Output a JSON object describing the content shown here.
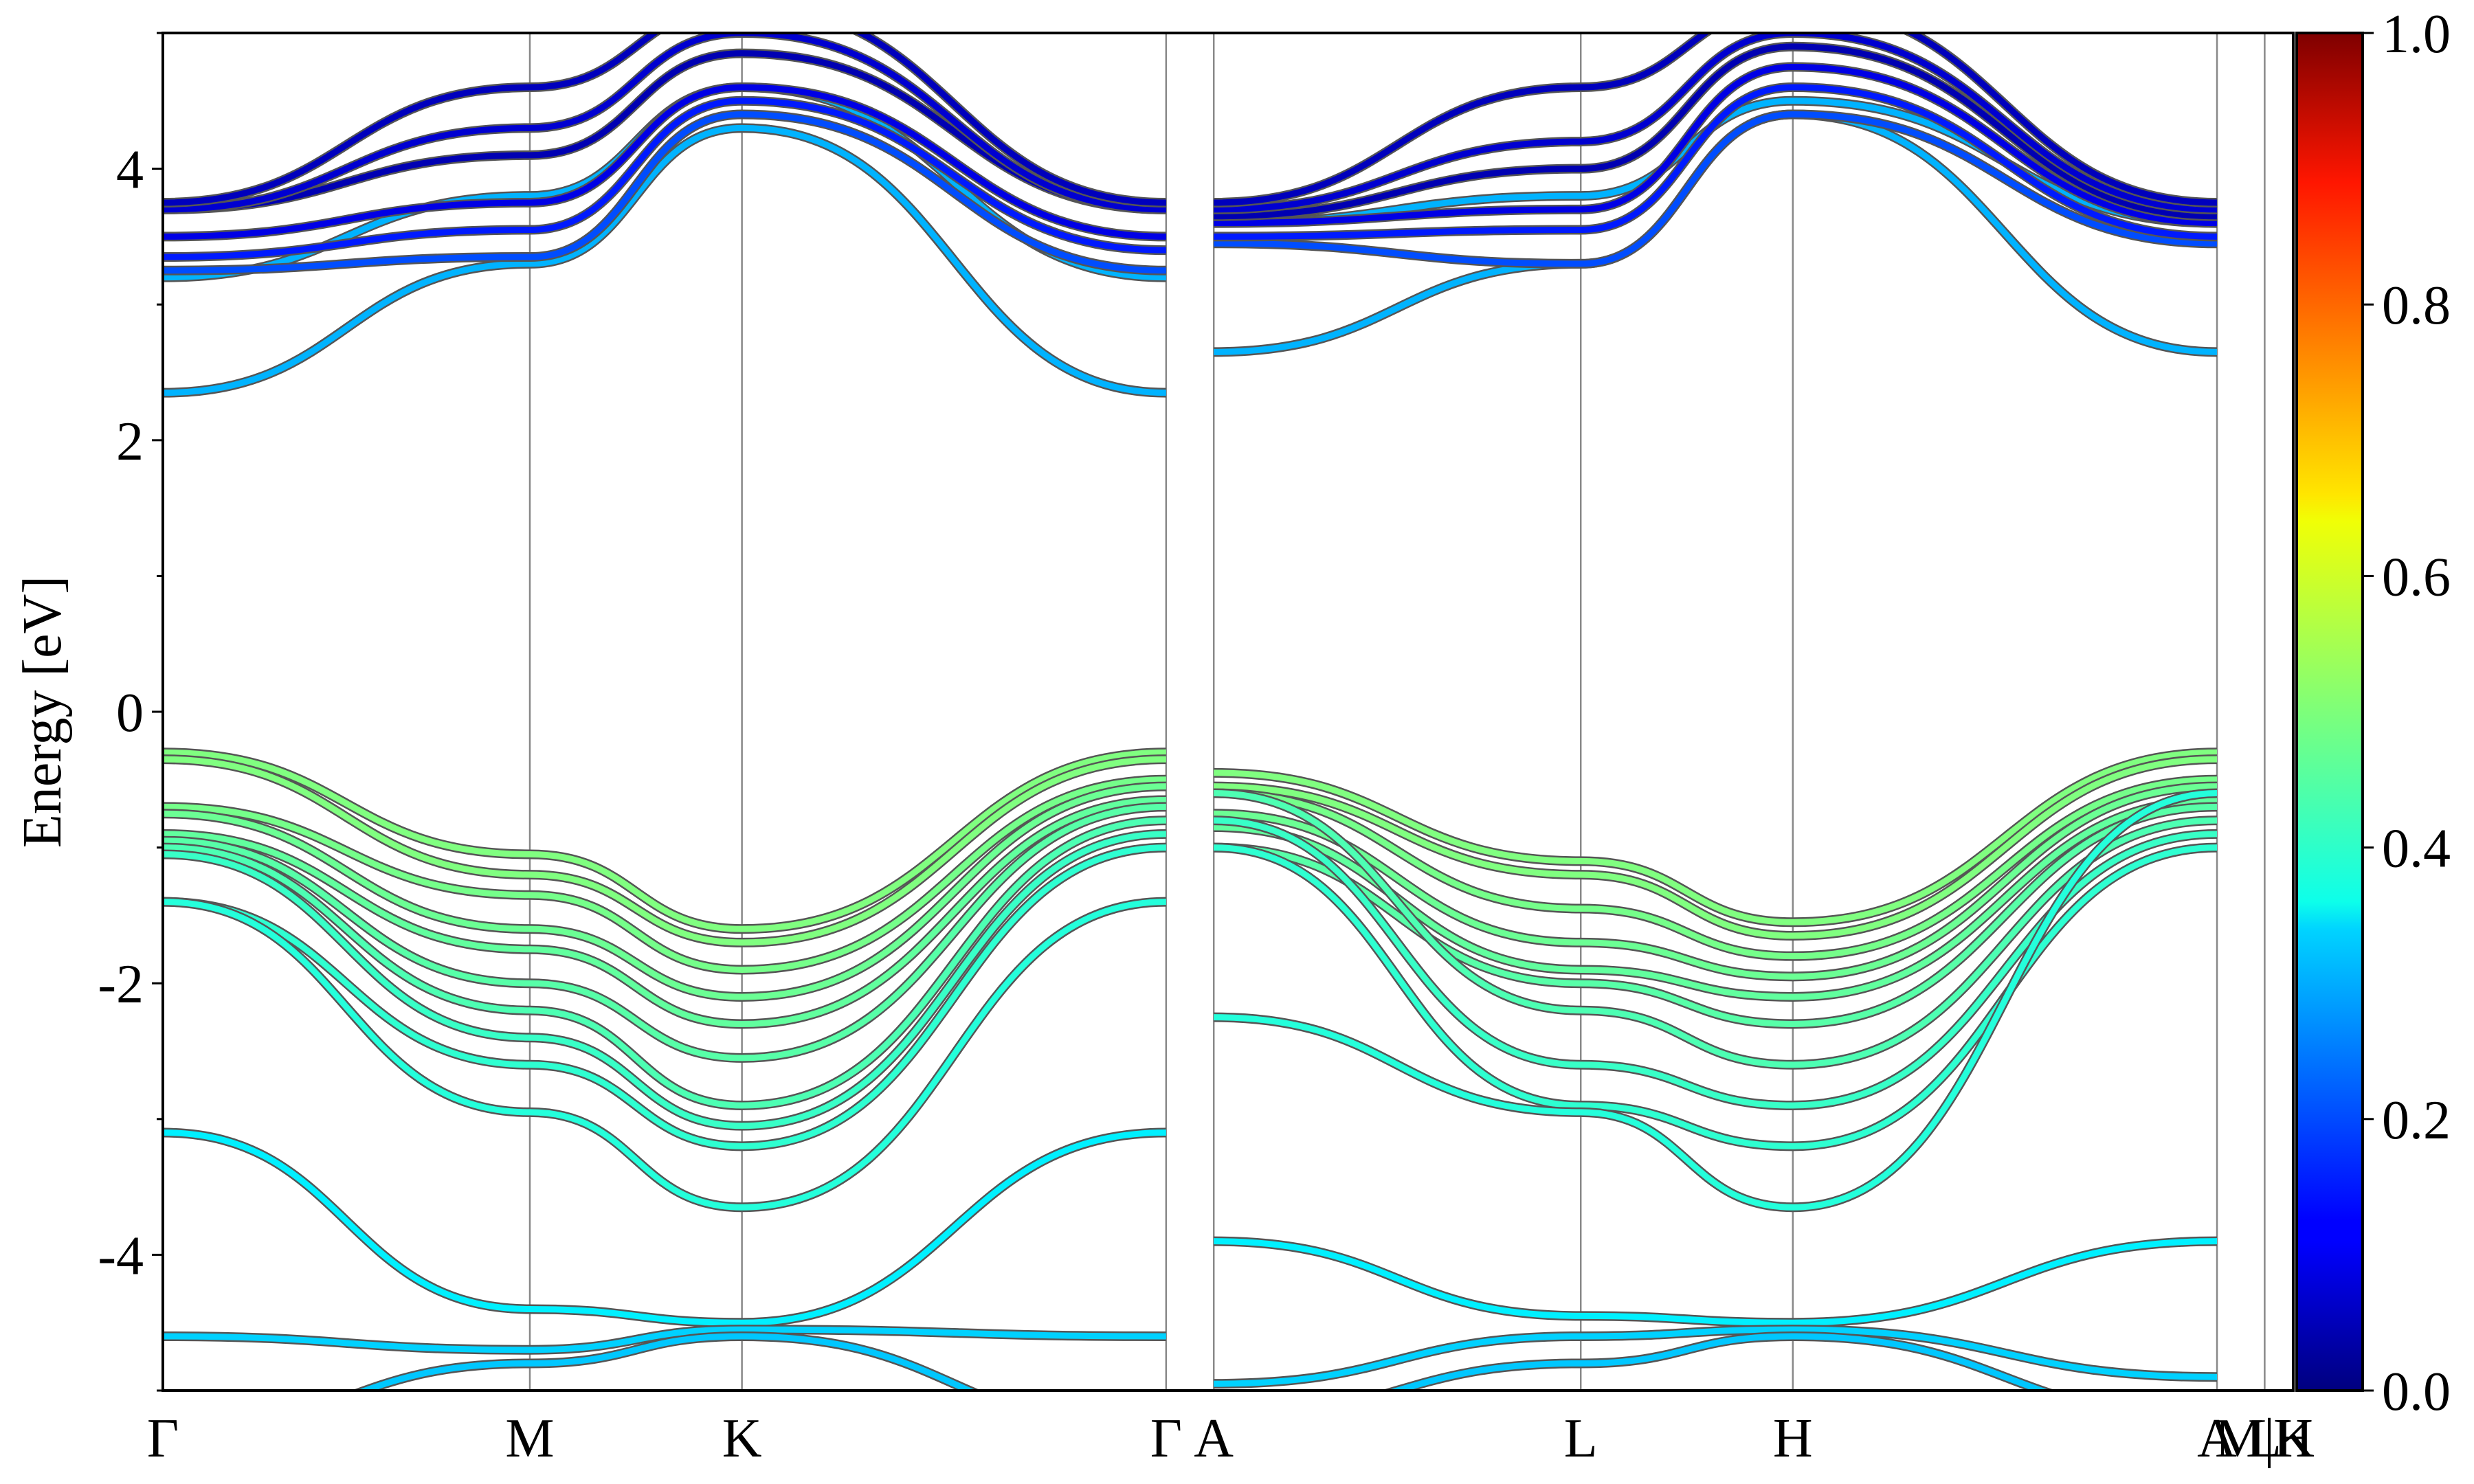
{
  "chart_data": {
    "type": "line",
    "title": "",
    "ylabel": "Energy [eV]",
    "xlabel": "",
    "ylim": [
      -5,
      5
    ],
    "yticks": [
      {
        "value": 4,
        "label": "4"
      },
      {
        "value": 2,
        "label": "2"
      },
      {
        "value": 0,
        "label": "0"
      },
      {
        "value": -2,
        "label": "-2"
      },
      {
        "value": -4,
        "label": "-4"
      }
    ],
    "x_range": [
      0,
      4.47
    ],
    "kpoints": [
      {
        "label": "Γ",
        "x": 0.0
      },
      {
        "label": "M",
        "x": 0.77
      },
      {
        "label": "K",
        "x": 1.215
      },
      {
        "label": "Γ",
        "x": 2.105
      },
      {
        "label": "A",
        "x": 2.205
      },
      {
        "label": "L",
        "x": 2.975
      },
      {
        "label": "H",
        "x": 3.42
      },
      {
        "label": "A",
        "x": 4.31
      },
      {
        "label": "L",
        "x": 4.41
      },
      {
        "label": "M|K",
        "x": 4.41
      },
      {
        "label": "H",
        "x": 4.47
      }
    ],
    "colorbar": {
      "colormap": "jet",
      "range": [
        0.0,
        1.0
      ],
      "ticks": [
        {
          "value": 0.0,
          "label": "0.0"
        },
        {
          "value": 0.2,
          "label": "0.2"
        },
        {
          "value": 0.4,
          "label": "0.4"
        },
        {
          "value": 0.6,
          "label": "0.6"
        },
        {
          "value": 0.8,
          "label": "0.8"
        },
        {
          "value": 1.0,
          "label": "1.0"
        }
      ]
    },
    "segments": [
      {
        "x": [
          0.0,
          0.77,
          1.215,
          2.105
        ]
      },
      {
        "x": [
          2.205,
          2.975,
          3.42,
          4.31
        ]
      }
    ],
    "series": [
      {
        "weight": 0.5,
        "segment_values": [
          [
            -0.3,
            -1.05,
            -1.6,
            -0.3
          ],
          [
            -0.45,
            -1.1,
            -1.55,
            -0.3
          ]
        ]
      },
      {
        "weight": 0.5,
        "segment_values": [
          [
            -0.35,
            -1.2,
            -1.7,
            -0.35
          ],
          [
            -0.55,
            -1.2,
            -1.65,
            -0.35
          ]
        ]
      },
      {
        "weight": 0.49,
        "segment_values": [
          [
            -0.7,
            -1.35,
            -1.9,
            -0.5
          ],
          [
            -0.6,
            -1.45,
            -1.8,
            -0.5
          ]
        ]
      },
      {
        "weight": 0.48,
        "segment_values": [
          [
            -0.75,
            -1.6,
            -2.1,
            -0.55
          ],
          [
            -0.75,
            -1.7,
            -1.95,
            -0.55
          ]
        ]
      },
      {
        "weight": 0.47,
        "segment_values": [
          [
            -0.9,
            -1.75,
            -2.3,
            -0.65
          ],
          [
            -0.85,
            -1.9,
            -2.1,
            -0.65
          ]
        ]
      },
      {
        "weight": 0.46,
        "segment_values": [
          [
            -0.95,
            -2.0,
            -2.55,
            -0.7
          ],
          [
            -1.0,
            -2.0,
            -2.3,
            -0.7
          ]
        ]
      },
      {
        "weight": 0.45,
        "segment_values": [
          [
            -1.0,
            -2.2,
            -2.9,
            -0.8
          ],
          [
            -0.6,
            -2.2,
            -2.6,
            -0.8
          ]
        ]
      },
      {
        "weight": 0.43,
        "segment_values": [
          [
            -1.05,
            -2.4,
            -3.05,
            -0.9
          ],
          [
            -0.8,
            -2.6,
            -2.9,
            -0.9
          ]
        ]
      },
      {
        "weight": 0.42,
        "segment_values": [
          [
            -1.4,
            -2.6,
            -3.2,
            -1.0
          ],
          [
            -1.0,
            -2.9,
            -3.2,
            -1.0
          ]
        ]
      },
      {
        "weight": 0.41,
        "segment_values": [
          [
            -1.4,
            -2.95,
            -3.65,
            -1.4
          ],
          [
            -2.25,
            -2.95,
            -3.65,
            -0.6
          ]
        ]
      },
      {
        "weight": 0.36,
        "segment_values": [
          [
            -3.1,
            -4.4,
            -4.5,
            -3.1
          ],
          [
            -3.9,
            -4.45,
            -4.5,
            -3.9
          ]
        ]
      },
      {
        "weight": 0.33,
        "segment_values": [
          [
            -4.6,
            -4.7,
            -4.55,
            -4.6
          ],
          [
            -4.95,
            -4.6,
            -4.55,
            -4.9
          ]
        ]
      },
      {
        "weight": 0.32,
        "segment_values": [
          [
            -5.3,
            -4.8,
            -4.6,
            -5.3
          ],
          [
            -5.2,
            -4.8,
            -4.6,
            -5.2
          ]
        ]
      },
      {
        "weight": 0.3,
        "segment_values": [
          [
            2.35,
            3.3,
            4.3,
            2.35
          ],
          [
            2.65,
            3.3,
            4.4,
            2.65
          ]
        ]
      },
      {
        "weight": 0.3,
        "segment_values": [
          [
            3.2,
            3.8,
            4.6,
            3.2
          ],
          [
            3.6,
            3.8,
            4.5,
            3.6
          ]
        ]
      },
      {
        "weight": 0.2,
        "segment_values": [
          [
            3.25,
            3.35,
            4.4,
            3.25
          ],
          [
            3.45,
            3.3,
            4.4,
            3.45
          ]
        ]
      },
      {
        "weight": 0.15,
        "segment_values": [
          [
            3.35,
            3.55,
            4.5,
            3.4
          ],
          [
            3.5,
            3.55,
            4.6,
            3.5
          ]
        ]
      },
      {
        "weight": 0.1,
        "segment_values": [
          [
            3.5,
            3.75,
            4.6,
            3.5
          ],
          [
            3.6,
            3.7,
            4.75,
            3.6
          ]
        ]
      },
      {
        "weight": 0.05,
        "segment_values": [
          [
            3.7,
            4.1,
            4.85,
            3.7
          ],
          [
            3.65,
            4.0,
            4.9,
            3.65
          ]
        ]
      },
      {
        "weight": 0.08,
        "segment_values": [
          [
            3.7,
            4.3,
            5.0,
            3.7
          ],
          [
            3.7,
            4.2,
            5.0,
            3.7
          ]
        ]
      },
      {
        "weight": 0.06,
        "segment_values": [
          [
            3.75,
            4.6,
            5.2,
            3.75
          ],
          [
            3.75,
            4.6,
            5.2,
            3.75
          ]
        ]
      }
    ]
  }
}
